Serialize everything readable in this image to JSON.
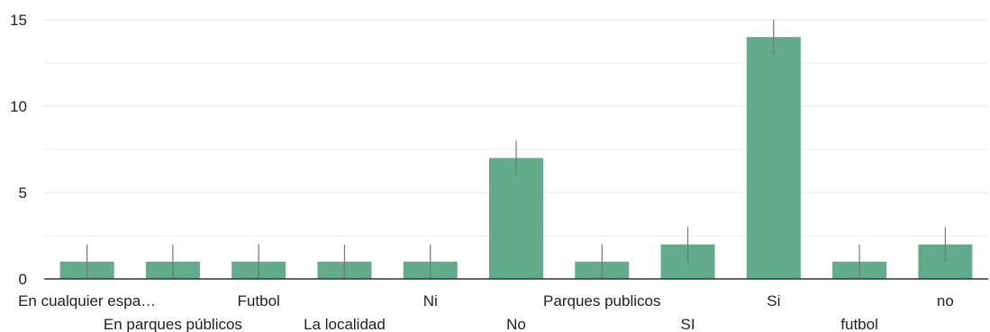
{
  "chart_data": {
    "type": "bar",
    "categories": [
      "En cualquier espa…",
      "En parques públicos",
      "Futbol",
      "La localidad",
      "Ni",
      "No",
      "Parques publicos",
      "SI",
      "Si",
      "futbol",
      "no"
    ],
    "values": [
      1,
      1,
      1,
      1,
      1,
      7,
      1,
      2,
      14,
      1,
      2
    ],
    "ylim": [
      0,
      15
    ],
    "yticks": [
      0,
      5,
      10,
      15
    ],
    "grid": true,
    "bar_color": "#62ab8b",
    "error_bar_color": "#777777",
    "gridline_color": "#e8e8e8",
    "axis_color": "#333333"
  }
}
